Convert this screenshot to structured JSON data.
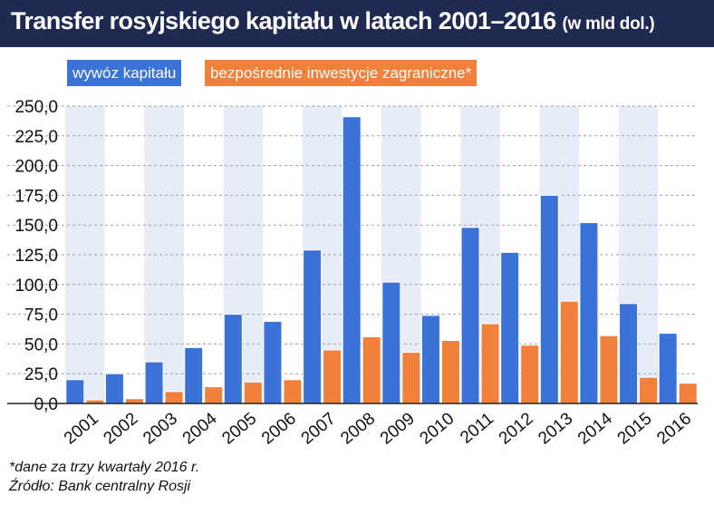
{
  "header": {
    "title": "Transfer rosyjskiego kapitału w latach 2001–2016",
    "title_unit": "(w mld dol.)"
  },
  "footnotes": {
    "note": "*dane za trzy kwartały 2016 r.",
    "source": "Źródło: Bank centralny Rosji"
  },
  "colors": {
    "header_bg": "#1f2a52",
    "series_blue": "#3a72d8",
    "series_orange": "#f0803a",
    "band_light": "#e6edf9"
  },
  "chart_data": {
    "type": "bar",
    "categories": [
      "2001",
      "2002",
      "2003",
      "2004",
      "2005",
      "2006",
      "2007",
      "2008",
      "2009",
      "2010",
      "2011",
      "2012",
      "2013",
      "2014",
      "2015",
      "2016"
    ],
    "series": [
      {
        "name": "wywóz kapitału",
        "color": "#3a72d8",
        "values": [
          20,
          25,
          35,
          47,
          75,
          69,
          129,
          241,
          102,
          74,
          148,
          127,
          175,
          152,
          84,
          59
        ]
      },
      {
        "name": "bezpośrednie inwestycje zagraniczne*",
        "color": "#f0803a",
        "values": [
          3,
          4,
          10,
          14,
          18,
          20,
          45,
          56,
          43,
          53,
          67,
          49,
          86,
          57,
          22,
          17
        ]
      }
    ],
    "yticks": [
      "0,0",
      "25,0",
      "50,0",
      "75,0",
      "100,0",
      "125,0",
      "150,0",
      "175,0",
      "200,0",
      "225,0",
      "250,0"
    ],
    "ylim": [
      0,
      250
    ],
    "grid": true,
    "legend": "top-left",
    "xlabel": "",
    "ylabel": ""
  }
}
